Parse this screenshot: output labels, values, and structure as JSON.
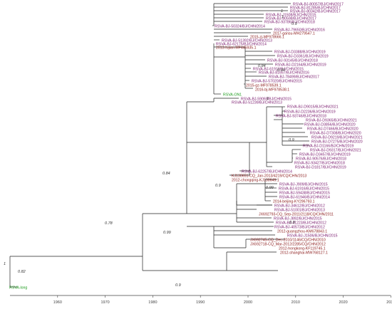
{
  "colors": {
    "purple": "#7a1a6e",
    "darkred": "#8b1a1a",
    "green": "#1a9a1a",
    "branch": "#222222",
    "axis": "#444444",
    "support": "#333333"
  },
  "axis": {
    "min": 1950,
    "max": 2030,
    "ticks": [
      "1960",
      "1970",
      "1980",
      "1990",
      "2000",
      "2010",
      "2020",
      "2030"
    ]
  },
  "taxa": [
    {
      "label": "RSVA-BJ-80057/BJ/CHN/2017",
      "color": "purple"
    },
    {
      "label": "RSVA-BJ-81285/BJ/CHN/2017",
      "color": "purple"
    },
    {
      "label": "RSVA-BJ-80342/BJ/CHN/2017",
      "color": "purple"
    },
    {
      "label": "RSVA-BJ-J1508/BJ/CHN/2015",
      "color": "purple"
    },
    {
      "label": "RSVA-BJ-80598/BJ/CHN/2017",
      "color": "purple"
    },
    {
      "label": "RSVA-BJ-93786/BJ/CHN/2018",
      "color": "purple"
    },
    {
      "label": "RSVA-BJ-50324/BJ/CHN/2014",
      "color": "purple"
    },
    {
      "label": "RSVA-BJ-79650/BJ/CHN/2016",
      "color": "purple"
    },
    {
      "label": "2017-gansu-MH279547.1",
      "color": "darkred"
    },
    {
      "label": "2015-zj-MF978666.1",
      "color": "darkred"
    },
    {
      "label": "RSVA-BJ-51392/BJ/CHN/2013",
      "color": "purple"
    },
    {
      "label": "RSVA-BJ-62175/BJ/CHN/2014",
      "color": "purple"
    },
    {
      "label": "2013-fujian-MF445935.1",
      "color": "darkred"
    },
    {
      "label": "RSVA-BJ-D3388/BJ/CHN/2019",
      "color": "purple"
    },
    {
      "label": "RSVA-BJ-D3361/BJ/CHN/2019",
      "color": "purple"
    },
    {
      "label": "RSVA-BJ-93145/BJ/CHN/2018",
      "color": "purple"
    },
    {
      "label": "RSVA-BJ-D2164/BJ/CHN/2019",
      "color": "purple"
    },
    {
      "label": "RSVA-BJ-61910/BJ/CHN/2015",
      "color": "purple"
    },
    {
      "label": "RSVA-BJ-81657/BJ/CHN/2016",
      "color": "purple"
    },
    {
      "label": "RSVA-BJ-78499/BJ/CHN/2017",
      "color": "purple"
    },
    {
      "label": "RSVA-BJ-57020/BJ/CHN/2015",
      "color": "purple"
    },
    {
      "label": "2015-gz-MF978539.1",
      "color": "darkred"
    },
    {
      "label": "2016-bj-MF978538.1",
      "color": "darkred"
    },
    {
      "label": "RSVA-ON1",
      "color": "green"
    },
    {
      "label": "RSVA-BJ-59069/BJ/CHN/2015",
      "color": "purple"
    },
    {
      "label": "RSVA-BJ-51239/BJ/CHN/2013",
      "color": "purple"
    },
    {
      "label": "RSVA-BJ-D9015/BJ/CHN/2021",
      "color": "purple"
    },
    {
      "label": "RSVA-BJ-D2236/BJ/CHN/2019",
      "color": "purple"
    },
    {
      "label": "RSVA-BJ-93746/BJ/CHN/2018",
      "color": "purple"
    },
    {
      "label": "RSVA-BJ-D9365/BJ/CHN/2021",
      "color": "purple"
    },
    {
      "label": "RSVA-BJ-D3856/BJ/CHN/2020",
      "color": "purple"
    },
    {
      "label": "RSVA-BJ-D7466/BJ/CHN/2020",
      "color": "purple"
    },
    {
      "label": "RSVA-BJ-D7308/BJ/CHN/2020",
      "color": "purple"
    },
    {
      "label": "RSVA-BJ-D9219/BJ/CHN/2021",
      "color": "purple"
    },
    {
      "label": "RSVA-BJ-D7275/BJ/CHN/2020",
      "color": "purple"
    },
    {
      "label": "RSVA-BJ-D1166/BJ/CHN/2019",
      "color": "purple"
    },
    {
      "label": "RSVA-BJ-D9317/BJ/CHN/2021",
      "color": "purple"
    },
    {
      "label": "RSVA-BJ-D3457/BJ/CHN/2019",
      "color": "purple"
    },
    {
      "label": "RSVA-BJ-90576/BJ/CHN/2018",
      "color": "purple"
    },
    {
      "label": "RSVA-BJ-93427/BJ/CHN/2018",
      "color": "purple"
    },
    {
      "label": "RSVA-BJ-D1817/BJ/CHN/2019",
      "color": "purple"
    },
    {
      "label": "RSVA-BJ-62257/BJ/CHN/2014",
      "color": "purple"
    },
    {
      "label": "KJ130651-CQ_Jan-2013/4219/CQ/CHN/2013",
      "color": "darkred"
    },
    {
      "label": "2012-chongqing-KJ130649.1",
      "color": "darkred"
    },
    {
      "label": "RSVA-BJ-J909/BJ/CHN/2015",
      "color": "purple"
    },
    {
      "label": "RSVA-BJ-61916/BJ/CHN/2015",
      "color": "purple"
    },
    {
      "label": "RSVA-BJ-59438/BJ/CHN/2015",
      "color": "purple"
    },
    {
      "label": "RSVA-BJ-61946/BJ/CHN/2014",
      "color": "purple"
    },
    {
      "label": "2014-beijing-KY296793.1",
      "color": "darkred"
    },
    {
      "label": "RSVA-BJ-34612/BJ/CHN/2012",
      "color": "purple"
    },
    {
      "label": "RSVA-BJ-51001/BJ/CHN/2013",
      "color": "purple"
    },
    {
      "label": "JX692793-CQ_Sep-2011/2118/CQ/CHN/2011",
      "color": "darkred"
    },
    {
      "label": "RSVA-BJ-J892/BJ/CHN/2015",
      "color": "purple"
    },
    {
      "label": "RSVA-BJ-41223/BJ/CHN/2012",
      "color": "purple"
    },
    {
      "label": "RSVA-BJ-40573/BJ/CHN/2012",
      "color": "purple"
    },
    {
      "label": "2012-guangzhou-KM678843.1",
      "color": "darkred"
    },
    {
      "label": "RSVA-BJ-J1506/BJ/CHN/2015",
      "color": "purple"
    },
    {
      "label": "JX692745-CQ_Dec-2010/1146/CQ/CHN/2010",
      "color": "darkred"
    },
    {
      "label": "JX692718-CQ_Mar-2012/2285/CQ/CHN/2012",
      "color": "darkred"
    },
    {
      "label": "2012-hongkong-KF119745.1",
      "color": "darkred"
    },
    {
      "label": "2012-shanghai-MW768127.1",
      "color": "darkred"
    },
    {
      "label": "RSVA-long",
      "color": "green"
    }
  ],
  "supports": [
    "1",
    "0.9",
    "0.82",
    "0.78",
    "0.84",
    "0.99",
    "0.99",
    "0.9",
    "0.9",
    "0.9",
    "0.9",
    "1",
    "1",
    "0.84",
    "1",
    "0.99"
  ]
}
